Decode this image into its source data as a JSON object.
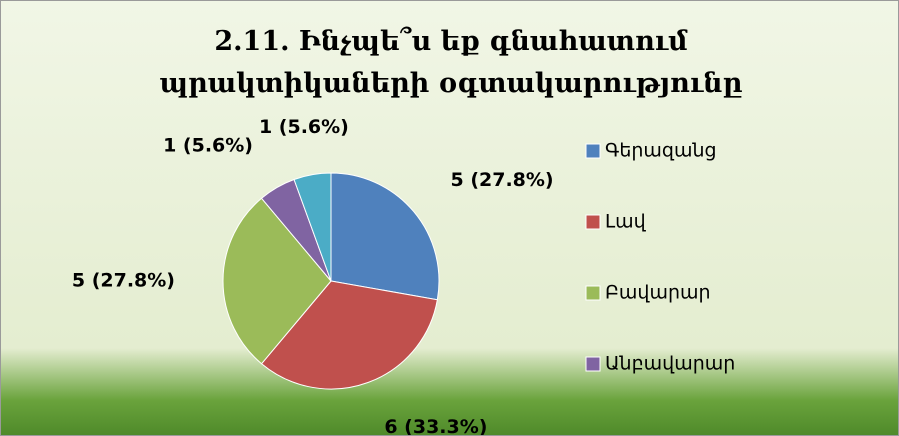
{
  "chart_data": {
    "type": "pie",
    "title": "2.11. Ինչպե՞ս եք գնահատում պրակտիկաների օգտակարությունը",
    "categories": [
      "Գերազանց",
      "Լավ",
      "Բավարար",
      "Անբավարար",
      null
    ],
    "values": [
      5,
      6,
      5,
      1,
      1
    ],
    "value_labels": [
      "5 (27.8%)",
      "6 (33.3%)",
      "5 (27.8%)",
      "1 (5.6%)",
      "1 (5.6%)"
    ],
    "colors": [
      "#4f81bd",
      "#c0504d",
      "#9bbb59",
      "#8064a2",
      "#4bacc6"
    ],
    "legend": "right"
  }
}
